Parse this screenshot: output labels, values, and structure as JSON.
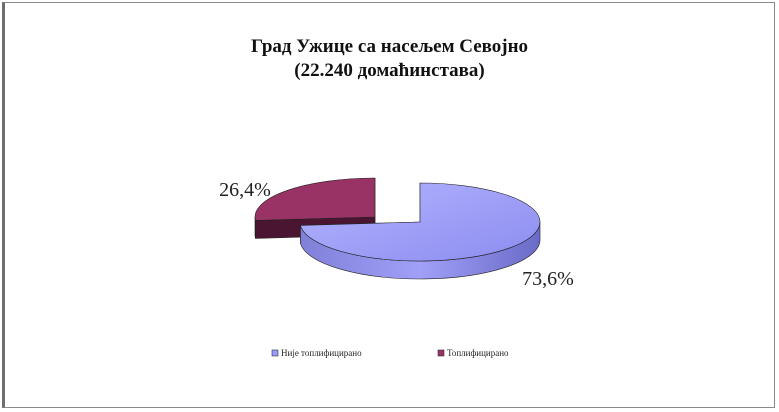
{
  "chart_data": {
    "type": "pie",
    "title": "Град Ужице са насељем Севојно",
    "subtitle": "(22.240 домаћинстава)",
    "categories": [
      "Није топлифицирано",
      "Топлифицирано"
    ],
    "values": [
      73.6,
      26.4
    ],
    "data_labels": [
      "73,6%",
      "26,4%"
    ],
    "colors": [
      "#9999ff",
      "#993366"
    ],
    "exploded": true,
    "three_d": true,
    "legend_position": "bottom"
  }
}
